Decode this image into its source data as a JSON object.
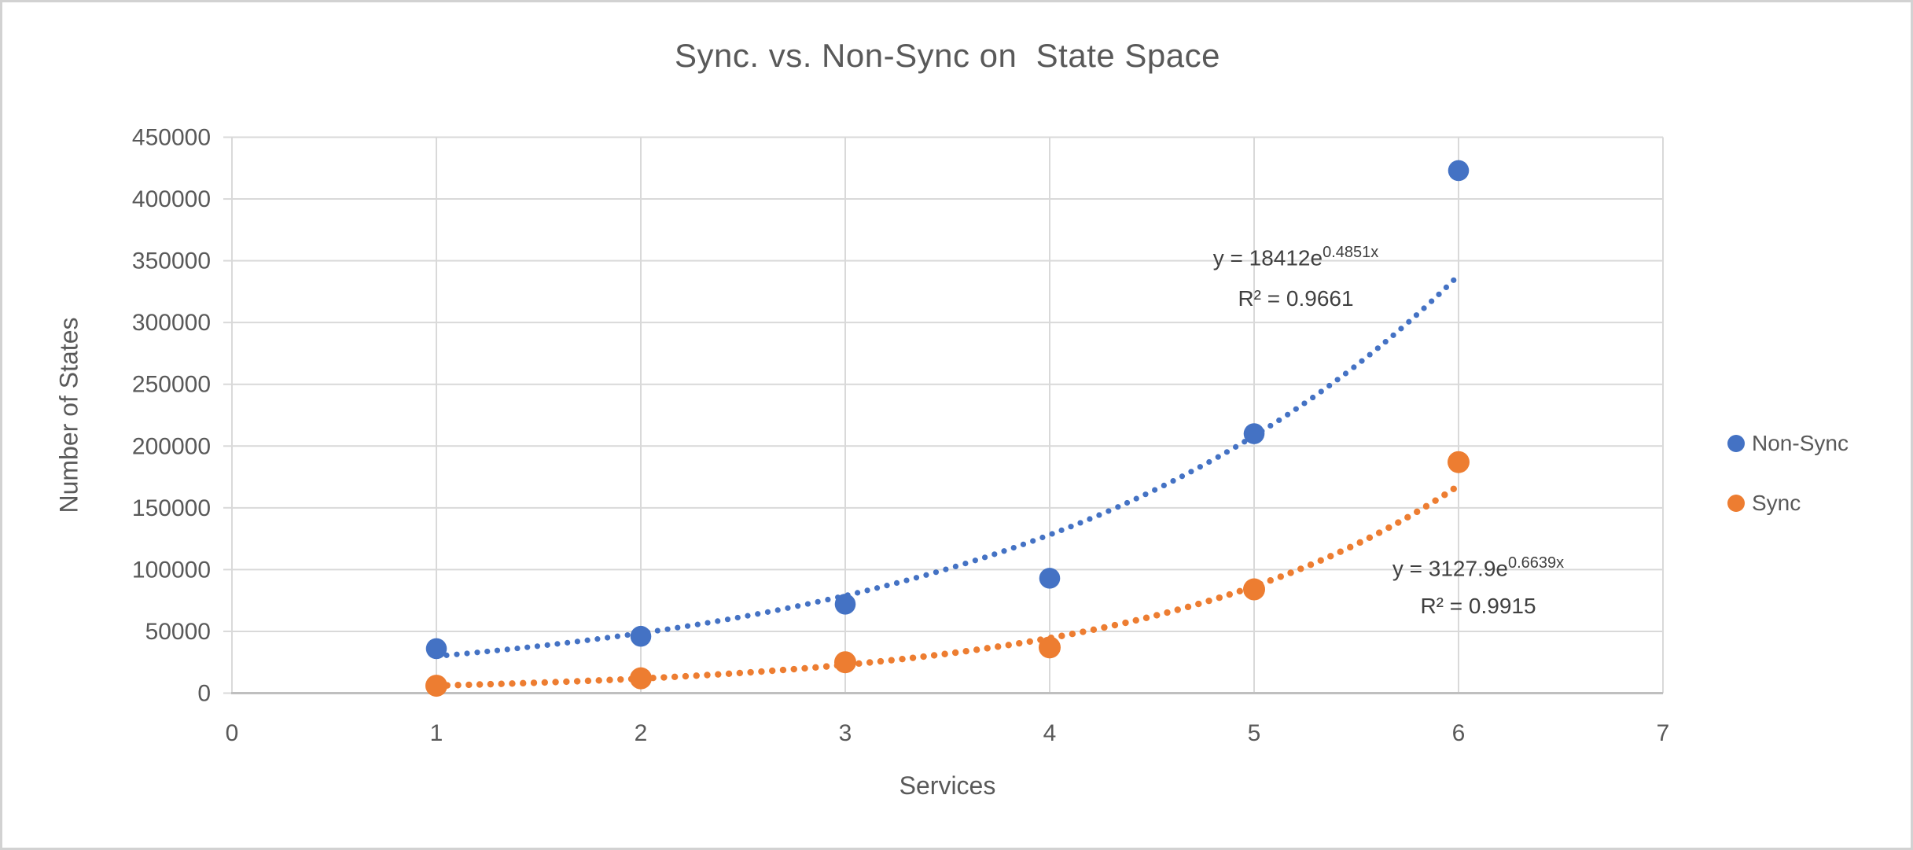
{
  "title": "Sync. vs. Non-Sync on  State Space",
  "axes": {
    "x_label": "Services",
    "y_label": "Number of States",
    "x_ticks": [
      "0",
      "1",
      "2",
      "3",
      "4",
      "5",
      "6",
      "7"
    ],
    "y_ticks": [
      "0",
      "50000",
      "100000",
      "150000",
      "200000",
      "250000",
      "300000",
      "350000",
      "400000",
      "450000"
    ]
  },
  "legend": {
    "items": [
      {
        "label": "Non-Sync",
        "color": "#4472C4"
      },
      {
        "label": "Sync",
        "color": "#ED7D31"
      }
    ]
  },
  "colors": {
    "non_sync": "#4472C4",
    "sync": "#ED7D31",
    "gridline": "#D9D9D9",
    "axis_line": "#BFBFBF",
    "text": "#595959",
    "equation_text": "#404040"
  },
  "chart_data": {
    "type": "scatter",
    "title": "Sync. vs. Non-Sync on  State Space",
    "xlabel": "Services",
    "ylabel": "Number of States",
    "xlim": [
      0,
      7
    ],
    "ylim": [
      0,
      450000
    ],
    "grid": true,
    "legend_position": "right",
    "series": [
      {
        "name": "Non-Sync",
        "color": "#4472C4",
        "x": [
          1,
          2,
          3,
          4,
          5,
          6
        ],
        "y": [
          36000,
          46000,
          72000,
          93000,
          210000,
          423000
        ],
        "trendline": {
          "type": "exponential",
          "a": 18412,
          "b": 0.4851,
          "range": [
            1,
            6
          ],
          "label_base": "y = 18412e",
          "label_exp": "0.4851x",
          "label_r2": "R² = 0.9661"
        }
      },
      {
        "name": "Sync",
        "color": "#ED7D31",
        "x": [
          1,
          2,
          3,
          4,
          5,
          6
        ],
        "y": [
          6000,
          12000,
          25000,
          37000,
          84000,
          187000
        ],
        "trendline": {
          "type": "exponential",
          "a": 3127.9,
          "b": 0.6639,
          "range": [
            1,
            6
          ],
          "label_base": "y = 3127.9e",
          "label_exp": "0.6639x",
          "label_r2": "R² = 0.9915"
        }
      }
    ]
  }
}
